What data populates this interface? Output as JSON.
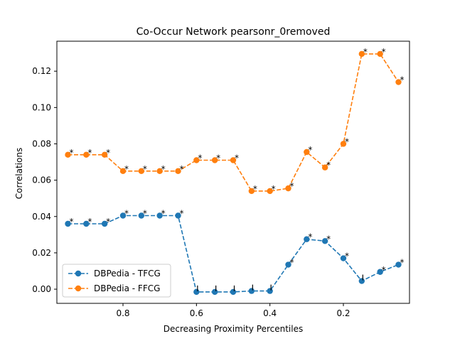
{
  "chart_data": {
    "type": "line",
    "title": "Co-Occur Network pearsonr_0removed",
    "xlabel": "Decreasing Proximity Percentiles",
    "ylabel": "Correlations",
    "xlim": [
      0.98,
      0.02
    ],
    "ylim": [
      -0.0078,
      0.1365
    ],
    "xticks": [
      0.8,
      0.6,
      0.4,
      0.2
    ],
    "xtick_labels": [
      "0.8",
      "0.6",
      "0.4",
      "0.2"
    ],
    "yticks": [
      0.0,
      0.02,
      0.04,
      0.06,
      0.08,
      0.1,
      0.12
    ],
    "ytick_labels": [
      "0.00",
      "0.02",
      "0.04",
      "0.06",
      "0.08",
      "0.10",
      "0.12"
    ],
    "x": [
      0.95,
      0.9,
      0.85,
      0.8,
      0.75,
      0.7,
      0.65,
      0.6,
      0.55,
      0.5,
      0.45,
      0.4,
      0.35,
      0.3,
      0.25,
      0.2,
      0.15,
      0.1,
      0.05
    ],
    "legend_position": "lower-left",
    "series": [
      {
        "name": "DBPedia - TFCG",
        "color": "#1f77b4",
        "values": [
          0.036,
          0.036,
          0.036,
          0.0405,
          0.0405,
          0.0405,
          0.0405,
          -0.0015,
          -0.0015,
          -0.0015,
          -0.001,
          -0.001,
          0.0135,
          0.0275,
          0.0265,
          0.017,
          0.0045,
          0.0095,
          0.0135
        ],
        "markers": [
          "*",
          "*",
          "*",
          "*",
          "*",
          "*",
          "*",
          "|",
          "|",
          "|",
          "|",
          "|",
          "*",
          "*",
          "*",
          "*",
          "|",
          "*",
          "*"
        ]
      },
      {
        "name": "DBPedia - FFCG",
        "color": "#ff7f0e",
        "values": [
          0.074,
          0.074,
          0.074,
          0.065,
          0.065,
          0.065,
          0.065,
          0.071,
          0.071,
          0.071,
          0.054,
          0.054,
          0.0555,
          0.0755,
          0.067,
          0.08,
          0.1295,
          0.1295,
          0.114
        ],
        "markers": [
          "*",
          "*",
          "*",
          "*",
          "*",
          "*",
          "*",
          "*",
          "*",
          "*",
          "*",
          "*",
          "*",
          "*",
          "*",
          "*",
          "*",
          "*",
          "*"
        ]
      }
    ]
  }
}
